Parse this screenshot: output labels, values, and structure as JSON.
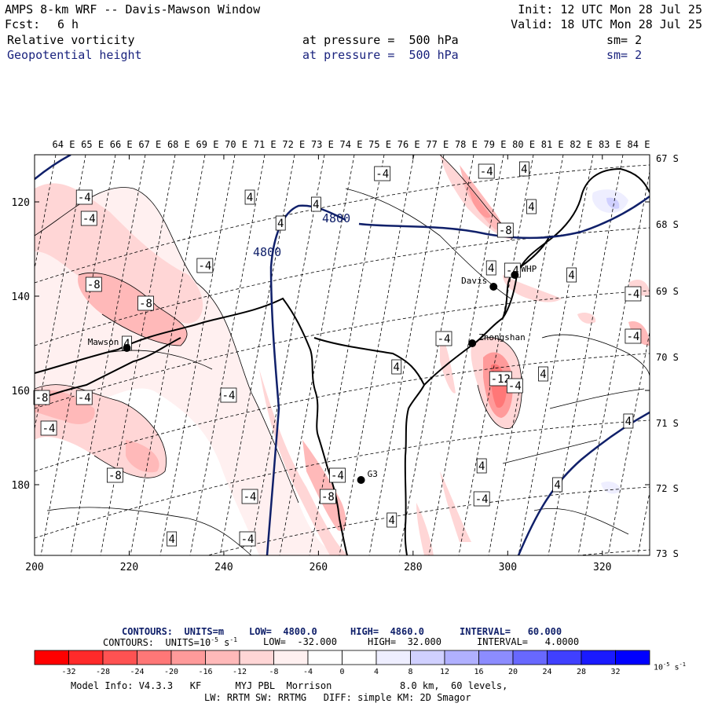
{
  "header": {
    "title": "AMPS 8-km WRF -- Davis-Mawson Window",
    "fcst_label": "Fcst:",
    "fcst_value": "6 h",
    "init": "Init: 12 UTC Mon 28 Jul 25",
    "valid": "Valid: 18 UTC Mon 28 Jul 25",
    "field1": {
      "name": "Relative vorticity",
      "level": "at pressure =  500 hPa",
      "sm": "sm= 2"
    },
    "field2": {
      "name": "Geopotential height",
      "level": "at pressure =  500 hPa",
      "sm": "sm= 2"
    }
  },
  "map": {
    "lon_labels": [
      "64 E",
      "65 E",
      "66 E",
      "67 E",
      "68 E",
      "69 E",
      "70 E",
      "71 E",
      "72 E",
      "73 E",
      "74 E",
      "75 E",
      "76 E",
      "77 E",
      "78 E",
      "79 E",
      "80 E",
      "81 E",
      "82 E",
      "83 E",
      "84 E"
    ],
    "lat_labels": [
      "67 S",
      "68 S",
      "69 S",
      "70 S",
      "71 S",
      "72 S",
      "73 S"
    ],
    "x_ticks": [
      "200",
      "220",
      "240",
      "260",
      "280",
      "300",
      "320"
    ],
    "y_ticks": [
      "120",
      "140",
      "160",
      "180"
    ],
    "stations": [
      {
        "name": "Mawson",
        "x": 219.5,
        "y": 151
      },
      {
        "name": "Davis",
        "x": 297,
        "y": 138
      },
      {
        "name": "WHP",
        "x": 301.5,
        "y": 135.5
      },
      {
        "name": "Zhongshan",
        "x": 292.5,
        "y": 150
      },
      {
        "name": "G3",
        "x": 269,
        "y": 179
      }
    ],
    "height_contours": [
      "4800",
      "4800"
    ],
    "vort_labels": [
      {
        "t": "-4",
        "x": 210.5,
        "y": 119
      },
      {
        "t": "-4",
        "x": 211.5,
        "y": 123.5
      },
      {
        "t": "-8",
        "x": 212.5,
        "y": 137.5
      },
      {
        "t": "-8",
        "x": 223.5,
        "y": 141.5
      },
      {
        "t": "-4",
        "x": 236,
        "y": 133.5
      },
      {
        "t": "4",
        "x": 245.5,
        "y": 119
      },
      {
        "t": "4",
        "x": 252,
        "y": 124.5
      },
      {
        "t": "4",
        "x": 259.5,
        "y": 120.5
      },
      {
        "t": "-4",
        "x": 273.5,
        "y": 114
      },
      {
        "t": "4",
        "x": 219.5,
        "y": 150
      },
      {
        "t": "-8",
        "x": 201.5,
        "y": 161.5
      },
      {
        "t": "-4",
        "x": 210.5,
        "y": 161.5
      },
      {
        "t": "-4",
        "x": 241,
        "y": 161
      },
      {
        "t": "-4",
        "x": 203,
        "y": 168
      },
      {
        "t": "-8",
        "x": 217,
        "y": 178
      },
      {
        "t": "-4",
        "x": 264,
        "y": 178
      },
      {
        "t": "-8",
        "x": 262,
        "y": 182.5
      },
      {
        "t": "-4",
        "x": 245.5,
        "y": 182.5
      },
      {
        "t": "4",
        "x": 229,
        "y": 191.5
      },
      {
        "t": "-4",
        "x": 245,
        "y": 191.5
      },
      {
        "t": "4",
        "x": 276.5,
        "y": 155
      },
      {
        "t": "4",
        "x": 294.5,
        "y": 176
      },
      {
        "t": "-4",
        "x": 294.5,
        "y": 183
      },
      {
        "t": "4",
        "x": 275.5,
        "y": 187.5
      },
      {
        "t": "-4",
        "x": 286.5,
        "y": 149
      },
      {
        "t": "-12",
        "x": 298.5,
        "y": 157.5
      },
      {
        "t": "-4",
        "x": 301.5,
        "y": 159
      },
      {
        "t": "4",
        "x": 307.5,
        "y": 156.5
      },
      {
        "t": "-4",
        "x": 301,
        "y": 134.5
      },
      {
        "t": "4",
        "x": 296.5,
        "y": 134
      },
      {
        "t": "-8",
        "x": 299.5,
        "y": 126
      },
      {
        "t": "-4",
        "x": 295.5,
        "y": 113.5
      },
      {
        "t": "4",
        "x": 303.5,
        "y": 113
      },
      {
        "t": "4",
        "x": 305,
        "y": 121
      },
      {
        "t": "4",
        "x": 313.5,
        "y": 135.5
      },
      {
        "t": "-4",
        "x": 326.5,
        "y": 139.5
      },
      {
        "t": "-4",
        "x": 326.5,
        "y": 148.5
      },
      {
        "t": "4",
        "x": 325.5,
        "y": 166.5
      },
      {
        "t": "4",
        "x": 310.5,
        "y": 180
      }
    ]
  },
  "footer": {
    "line1": {
      "prefix": "CONTOURS:  UNITS=m",
      "low": "LOW=  4800.0",
      "high": "HIGH=  4860.0",
      "interval": "INTERVAL=   60.000"
    },
    "line2": {
      "prefix": "CONTOURS:  UNITS=10",
      "exp": "-5",
      "unit_tail": " s",
      "unit_exp": "-1",
      "low": "LOW=  -32.000",
      "high": "HIGH=  32.000",
      "interval": "INTERVAL=   4.0000"
    },
    "colorbar_labels": [
      "-32",
      "-28",
      "-24",
      "-20",
      "-16",
      "-12",
      "-8",
      "-4",
      "0",
      "4",
      "8",
      "12",
      "16",
      "20",
      "24",
      "28",
      "32"
    ],
    "colorbar_units": "10",
    "colorbar_exp": "-5",
    "colorbar_tail": " s",
    "colorbar_tail_exp": "-1",
    "colorbar_colors": [
      "#ff0000",
      "#ff2a2a",
      "#ff5252",
      "#ff7777",
      "#ff9a9a",
      "#ffb9b9",
      "#ffd6d6",
      "#fff0f0",
      "#ffffff",
      "#ffffff",
      "#eeeeff",
      "#d0d0ff",
      "#b0b0ff",
      "#8c8cff",
      "#6868ff",
      "#4040ff",
      "#1a1aff",
      "#0000ff"
    ],
    "model_info": "Model Info: V4.3.3   KF      MYJ PBL  Morrison            8.0 km,  60 levels,",
    "model_info2": "LW: RRTM SW: RRTMG   DIFF: simple KM: 2D Smagor"
  }
}
